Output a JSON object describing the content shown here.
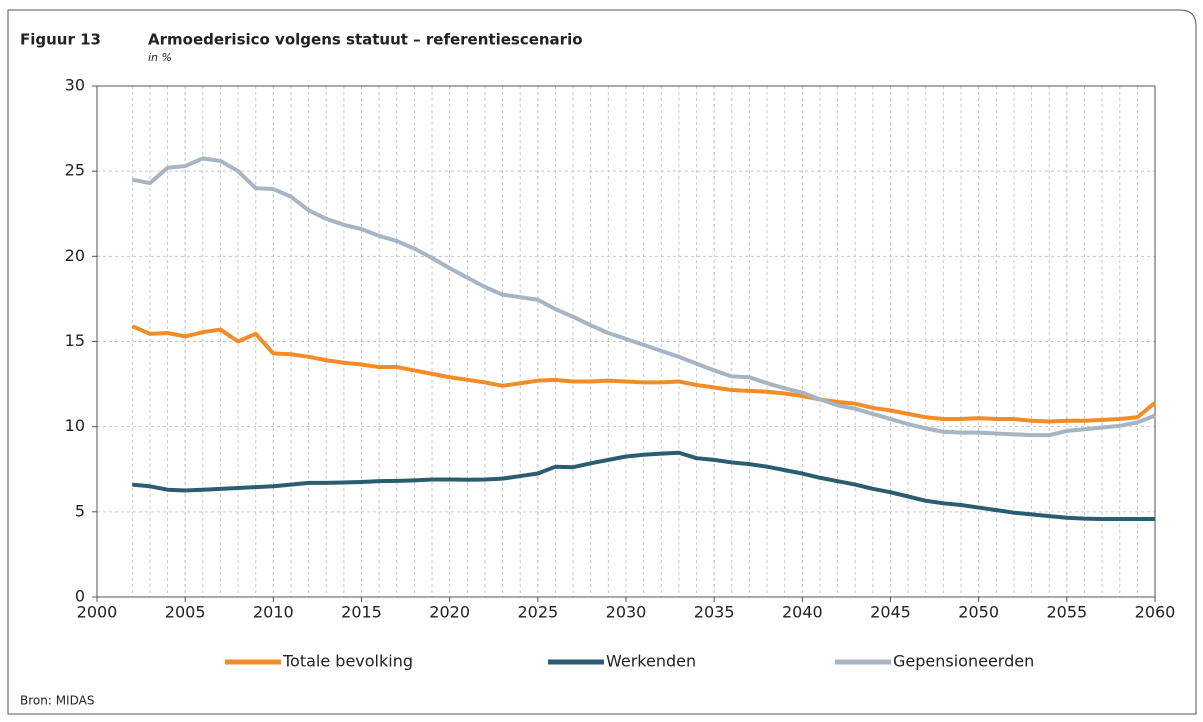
{
  "chart_data": {
    "type": "line",
    "title": "Figuur 13",
    "subtitle": "Armoederisico volgens statuut – referentiescenario",
    "y_label": "in %",
    "source": "Bron: MIDAS",
    "x": [
      2002,
      2003,
      2004,
      2005,
      2006,
      2007,
      2008,
      2009,
      2010,
      2011,
      2012,
      2013,
      2014,
      2015,
      2016,
      2017,
      2018,
      2019,
      2020,
      2021,
      2022,
      2023,
      2024,
      2025,
      2026,
      2027,
      2028,
      2029,
      2030,
      2031,
      2032,
      2033,
      2034,
      2035,
      2036,
      2037,
      2038,
      2039,
      2040,
      2041,
      2042,
      2043,
      2044,
      2045,
      2046,
      2047,
      2048,
      2049,
      2050,
      2051,
      2052,
      2053,
      2054,
      2055,
      2056,
      2057,
      2058,
      2059,
      2060
    ],
    "series": [
      {
        "name": "Totale bevolking",
        "color": "#f28c28",
        "values": [
          15.9,
          15.45,
          15.5,
          15.3,
          15.55,
          15.7,
          15.0,
          15.45,
          14.3,
          14.25,
          14.1,
          13.9,
          13.75,
          13.65,
          13.5,
          13.5,
          13.3,
          13.1,
          12.9,
          12.75,
          12.6,
          12.4,
          12.55,
          12.7,
          12.75,
          12.65,
          12.65,
          12.7,
          12.65,
          12.6,
          12.6,
          12.65,
          12.45,
          12.3,
          12.15,
          12.1,
          12.05,
          11.95,
          11.8,
          11.6,
          11.45,
          11.35,
          11.1,
          10.95,
          10.75,
          10.55,
          10.45,
          10.45,
          10.5,
          10.45,
          10.45,
          10.35,
          10.3,
          10.35,
          10.35,
          10.4,
          10.45,
          10.55,
          11.4
        ]
      },
      {
        "name": "Werkenden",
        "color": "#2a5d72",
        "values": [
          6.6,
          6.5,
          6.3,
          6.25,
          6.3,
          6.35,
          6.4,
          6.45,
          6.5,
          6.6,
          6.7,
          6.7,
          6.72,
          6.75,
          6.8,
          6.82,
          6.85,
          6.9,
          6.9,
          6.88,
          6.9,
          6.95,
          7.1,
          7.25,
          7.65,
          7.62,
          7.85,
          8.05,
          8.25,
          8.35,
          8.42,
          8.47,
          8.15,
          8.05,
          7.9,
          7.8,
          7.65,
          7.45,
          7.25,
          7.0,
          6.8,
          6.6,
          6.35,
          6.15,
          5.9,
          5.65,
          5.5,
          5.4,
          5.25,
          5.1,
          4.95,
          4.85,
          4.75,
          4.65,
          4.6,
          4.58,
          4.58,
          4.58,
          4.58
        ]
      },
      {
        "name": "Gepensioneerden",
        "color": "#a7b4c3",
        "values": [
          24.5,
          24.3,
          25.2,
          25.3,
          25.75,
          25.6,
          25.0,
          24.0,
          23.95,
          23.5,
          22.7,
          22.2,
          21.85,
          21.6,
          21.2,
          20.9,
          20.45,
          19.9,
          19.3,
          18.75,
          18.2,
          17.75,
          17.6,
          17.45,
          16.9,
          16.45,
          15.95,
          15.5,
          15.15,
          14.8,
          14.45,
          14.1,
          13.7,
          13.3,
          12.95,
          12.9,
          12.55,
          12.25,
          12.0,
          11.6,
          11.25,
          11.05,
          10.75,
          10.45,
          10.15,
          9.9,
          9.7,
          9.65,
          9.65,
          9.6,
          9.55,
          9.5,
          9.5,
          9.75,
          9.85,
          9.95,
          10.05,
          10.25,
          10.65
        ]
      }
    ],
    "xlim": [
      2000,
      2060
    ],
    "xticks": [
      2000,
      2005,
      2010,
      2015,
      2020,
      2025,
      2030,
      2035,
      2040,
      2045,
      2050,
      2055,
      2060
    ],
    "ylim": [
      0,
      30
    ],
    "yticks": [
      0,
      5,
      10,
      15,
      20,
      25,
      30
    ],
    "grid": true,
    "legend": "bottom"
  }
}
